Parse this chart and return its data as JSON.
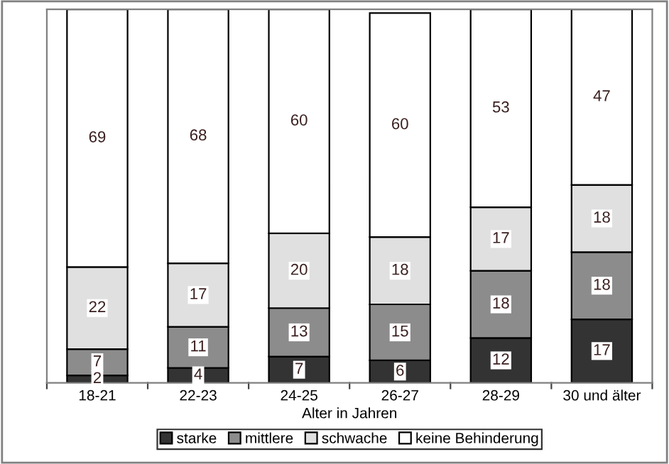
{
  "chart_data": {
    "type": "bar",
    "stacked": true,
    "data_labels": true,
    "xlabel": "Alter in Jahren",
    "categories": [
      "18-21",
      "22-23",
      "24-25",
      "26-27",
      "28-29",
      "30 und älter"
    ],
    "series": [
      {
        "name": "starke",
        "color": "#333333",
        "values": [
          2,
          4,
          7,
          6,
          12,
          17
        ]
      },
      {
        "name": "mittlere",
        "color": "#8c8c8c",
        "values": [
          7,
          11,
          13,
          15,
          18,
          18
        ]
      },
      {
        "name": "schwache",
        "color": "#e0e0e0",
        "values": [
          22,
          17,
          20,
          18,
          17,
          18
        ]
      },
      {
        "name": "keine Behinderung",
        "color": "#ffffff",
        "values": [
          69,
          68,
          60,
          60,
          53,
          47
        ]
      }
    ],
    "legend": "bottom",
    "grid": false,
    "tick_labels": "x"
  }
}
